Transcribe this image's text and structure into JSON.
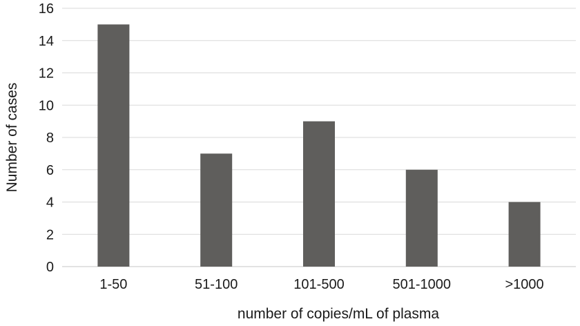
{
  "chart_data": {
    "type": "bar",
    "categories": [
      "1-50",
      "51-100",
      "101-500",
      "501-1000",
      ">1000"
    ],
    "values": [
      15,
      7,
      9,
      6,
      4
    ],
    "title": "",
    "xlabel": "number of copies/mL of plasma",
    "ylabel": "Number of cases",
    "ylim": [
      0,
      16
    ],
    "yticks": [
      0,
      2,
      4,
      6,
      8,
      10,
      12,
      14,
      16
    ],
    "grid": true,
    "bar_color": "#5f5e5c",
    "grid_color": "#d9d9d9"
  }
}
